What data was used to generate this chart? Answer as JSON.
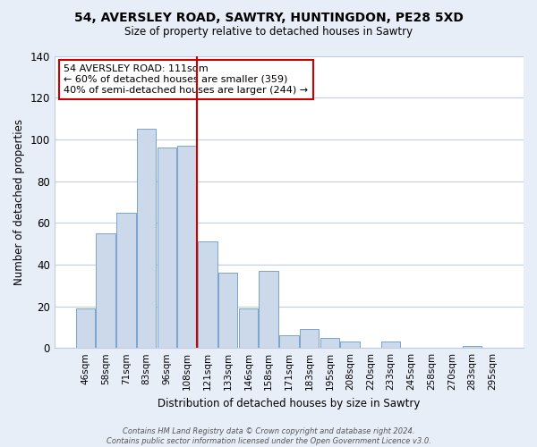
{
  "title1": "54, AVERSLEY ROAD, SAWTRY, HUNTINGDON, PE28 5XD",
  "title2": "Size of property relative to detached houses in Sawtry",
  "xlabel": "Distribution of detached houses by size in Sawtry",
  "ylabel": "Number of detached properties",
  "bar_labels": [
    "46sqm",
    "58sqm",
    "71sqm",
    "83sqm",
    "96sqm",
    "108sqm",
    "121sqm",
    "133sqm",
    "146sqm",
    "158sqm",
    "171sqm",
    "183sqm",
    "195sqm",
    "208sqm",
    "220sqm",
    "233sqm",
    "245sqm",
    "258sqm",
    "270sqm",
    "283sqm",
    "295sqm"
  ],
  "bar_values": [
    19,
    55,
    65,
    105,
    96,
    97,
    51,
    36,
    19,
    37,
    6,
    9,
    5,
    3,
    0,
    3,
    0,
    0,
    0,
    1,
    0
  ],
  "bar_fill_color": "#ccd9eb",
  "bar_edge_color": "#7ba3cc",
  "vline_x": 5,
  "vline_color": "#cc0000",
  "annotation_line1": "54 AVERSLEY ROAD: 111sqm",
  "annotation_line2": "← 60% of detached houses are smaller (359)",
  "annotation_line3": "40% of semi-detached houses are larger (244) →",
  "ylim": [
    0,
    140
  ],
  "yticks": [
    0,
    20,
    40,
    60,
    80,
    100,
    120,
    140
  ],
  "footer_text": "Contains HM Land Registry data © Crown copyright and database right 2024.\nContains public sector information licensed under the Open Government Licence v3.0.",
  "background_color": "#e8eef8",
  "plot_bg_color": "#ffffff",
  "grid_color": "#c0cce0"
}
